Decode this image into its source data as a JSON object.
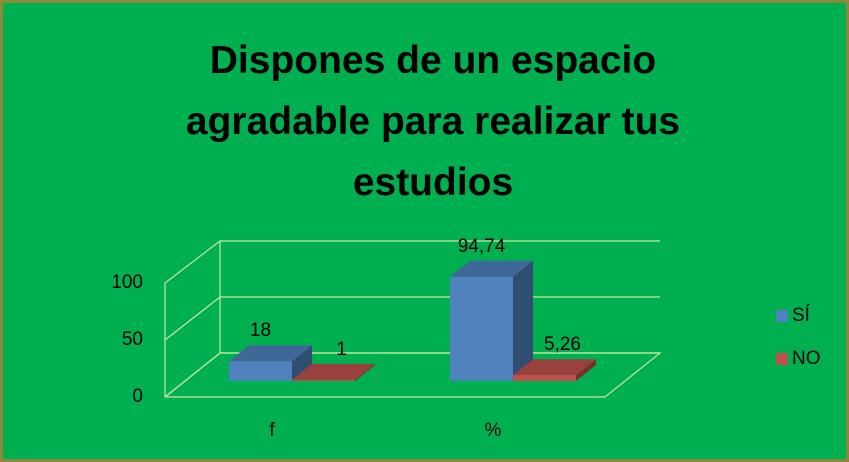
{
  "chart_data": {
    "type": "bar3d",
    "title": "Dispones de un espacio agradable para realizar tus estudios",
    "categories": [
      "f",
      "%"
    ],
    "series": [
      {
        "name": "SÍ",
        "color": "#4f81bd",
        "values": [
          18,
          94.74
        ],
        "value_labels": [
          "18",
          "94,74"
        ]
      },
      {
        "name": "NO",
        "color": "#c0504d",
        "values": [
          1,
          5.26
        ],
        "value_labels": [
          "1",
          "5,26"
        ]
      }
    ],
    "ylim": [
      0,
      100
    ],
    "yticks": [
      0,
      50,
      100
    ],
    "grid": true,
    "legend": "right"
  }
}
